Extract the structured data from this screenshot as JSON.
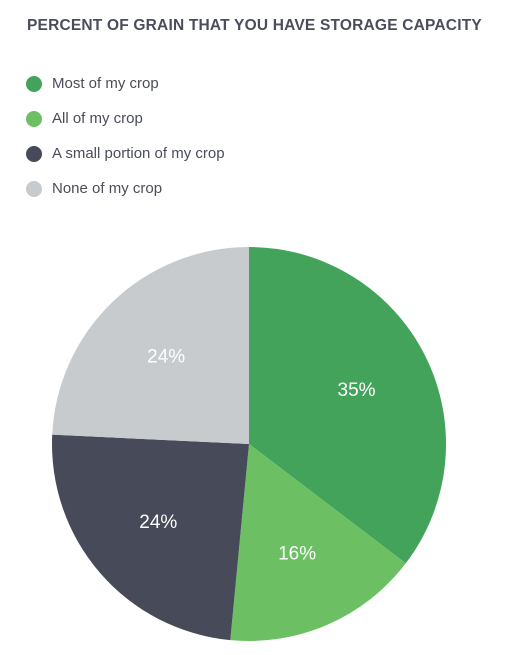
{
  "chart_data": {
    "type": "pie",
    "title": "PERCENT OF GRAIN THAT YOU HAVE STORAGE CAPACITY",
    "legend_position": "top-left",
    "slices": [
      {
        "label": "Most of my crop",
        "value": 35,
        "display": "35%",
        "color": "#43a35b"
      },
      {
        "label": "All of my crop",
        "value": 16,
        "display": "16%",
        "color": "#6cc063"
      },
      {
        "label": "A small portion of my crop",
        "value": 24,
        "display": "24%",
        "color": "#474a58"
      },
      {
        "label": "None of my crop",
        "value": 24,
        "display": "24%",
        "color": "#c8cbce"
      }
    ]
  }
}
